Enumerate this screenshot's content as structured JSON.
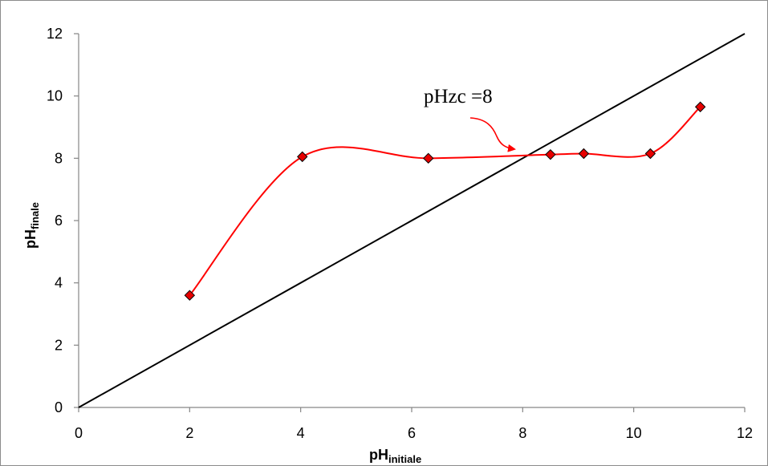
{
  "chart_data": {
    "type": "scatter",
    "xlabel": {
      "main": "pH",
      "subscript": "initiale"
    },
    "ylabel": {
      "main": "pH",
      "subscript": "finale"
    },
    "xlim": [
      0,
      12
    ],
    "ylim": [
      0,
      12
    ],
    "xticks": [
      "0",
      "2",
      "4",
      "6",
      "8",
      "10",
      "12"
    ],
    "yticks": [
      "0",
      "2",
      "4",
      "6",
      "8",
      "10",
      "12"
    ],
    "grid": false,
    "series": [
      {
        "kind": "smoothed-line-with-markers",
        "color": "#ff0000",
        "marker_color": "#e60000",
        "x": [
          2.0,
          4.03,
          6.3,
          8.5,
          9.1,
          10.3,
          11.2
        ],
        "y": [
          3.6,
          8.05,
          8.0,
          8.12,
          8.15,
          8.15,
          9.65
        ]
      },
      {
        "kind": "line",
        "color": "#000000",
        "x": [
          0,
          12
        ],
        "y": [
          0,
          12
        ]
      }
    ],
    "annotation": {
      "text": "pHzc =8",
      "arrow_color": "#ff0000"
    }
  }
}
